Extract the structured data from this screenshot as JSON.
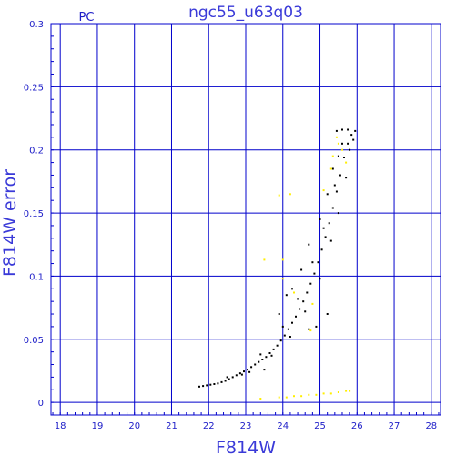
{
  "chart_data": {
    "type": "scatter",
    "title": "ngc55_u63q03",
    "corner_label": "PC",
    "xlabel": "F814W",
    "ylabel": "F814W error",
    "xlim": [
      17.75,
      28.25
    ],
    "ylim": [
      -0.01,
      0.3
    ],
    "x_ticks": [
      18,
      19,
      20,
      21,
      22,
      23,
      24,
      25,
      26,
      27,
      28
    ],
    "y_ticks": [
      0,
      0.05,
      0.1,
      0.15,
      0.2,
      0.25,
      0.3
    ],
    "y_tick_labels": [
      "0",
      "0.05",
      "0.1",
      "0.15",
      "0.2",
      "0.25",
      "0.3"
    ],
    "grid": true,
    "colors": {
      "axis": "#0000cc",
      "grid": "#0000cc",
      "text": "#3a3ad8",
      "main_series": "#000000",
      "secondary_series": "#ffee00"
    },
    "series": [
      {
        "color": "#000000",
        "values": [
          [
            21.75,
            0.0125
          ],
          [
            21.85,
            0.013
          ],
          [
            21.95,
            0.0135
          ],
          [
            22.05,
            0.014
          ],
          [
            22.15,
            0.0145
          ],
          [
            22.25,
            0.015
          ],
          [
            22.35,
            0.016
          ],
          [
            22.45,
            0.017
          ],
          [
            22.55,
            0.0185
          ],
          [
            22.65,
            0.02
          ],
          [
            22.75,
            0.0215
          ],
          [
            22.85,
            0.023
          ],
          [
            22.95,
            0.0245
          ],
          [
            23.05,
            0.026
          ],
          [
            23.15,
            0.028
          ],
          [
            23.25,
            0.03
          ],
          [
            23.35,
            0.032
          ],
          [
            23.45,
            0.034
          ],
          [
            23.55,
            0.036
          ],
          [
            23.65,
            0.039
          ],
          [
            23.75,
            0.042
          ],
          [
            23.85,
            0.045
          ],
          [
            23.95,
            0.049
          ],
          [
            24.05,
            0.053
          ],
          [
            24.15,
            0.058
          ],
          [
            24.25,
            0.063
          ],
          [
            24.35,
            0.068
          ],
          [
            24.45,
            0.074
          ],
          [
            24.55,
            0.08
          ],
          [
            24.65,
            0.087
          ],
          [
            24.75,
            0.094
          ],
          [
            24.85,
            0.102
          ],
          [
            24.95,
            0.111
          ],
          [
            25.05,
            0.121
          ],
          [
            25.15,
            0.131
          ],
          [
            25.25,
            0.142
          ],
          [
            25.35,
            0.154
          ],
          [
            25.45,
            0.167
          ],
          [
            25.55,
            0.18
          ],
          [
            25.65,
            0.194
          ],
          [
            25.75,
            0.205
          ],
          [
            25.85,
            0.212
          ],
          [
            25.95,
            0.215
          ],
          [
            23.1,
            0.024
          ],
          [
            23.4,
            0.038
          ],
          [
            23.7,
            0.037
          ],
          [
            24.0,
            0.06
          ],
          [
            24.2,
            0.052
          ],
          [
            24.4,
            0.082
          ],
          [
            24.6,
            0.072
          ],
          [
            24.8,
            0.111
          ],
          [
            25.0,
            0.098
          ],
          [
            25.1,
            0.138
          ],
          [
            25.3,
            0.128
          ],
          [
            25.4,
            0.172
          ],
          [
            25.5,
            0.15
          ],
          [
            25.6,
            0.205
          ],
          [
            25.7,
            0.178
          ],
          [
            25.8,
            0.2
          ],
          [
            25.9,
            0.208
          ],
          [
            25.45,
            0.215
          ],
          [
            25.6,
            0.216
          ],
          [
            25.75,
            0.216
          ],
          [
            24.25,
            0.09
          ],
          [
            24.5,
            0.105
          ],
          [
            24.7,
            0.125
          ],
          [
            25.0,
            0.145
          ],
          [
            25.2,
            0.165
          ],
          [
            25.35,
            0.185
          ],
          [
            25.5,
            0.195
          ],
          [
            24.9,
            0.06
          ],
          [
            25.2,
            0.07
          ],
          [
            23.9,
            0.07
          ],
          [
            24.1,
            0.085
          ],
          [
            23.5,
            0.026
          ],
          [
            22.9,
            0.022
          ],
          [
            22.5,
            0.02
          ],
          [
            24.7,
            0.058
          ]
        ]
      },
      {
        "color": "#ffee00",
        "values": [
          [
            23.4,
            0.003
          ],
          [
            23.9,
            0.004
          ],
          [
            24.1,
            0.004
          ],
          [
            24.3,
            0.005
          ],
          [
            24.5,
            0.005
          ],
          [
            24.7,
            0.006
          ],
          [
            24.9,
            0.006
          ],
          [
            25.1,
            0.007
          ],
          [
            25.3,
            0.007
          ],
          [
            25.5,
            0.008
          ],
          [
            25.7,
            0.009
          ],
          [
            25.8,
            0.009
          ],
          [
            24.0,
            0.113
          ],
          [
            24.0,
            0.098
          ],
          [
            23.5,
            0.113
          ],
          [
            23.9,
            0.164
          ],
          [
            24.2,
            0.165
          ],
          [
            25.1,
            0.168
          ],
          [
            25.35,
            0.195
          ],
          [
            25.3,
            0.185
          ],
          [
            25.6,
            0.2
          ],
          [
            25.7,
            0.19
          ],
          [
            25.5,
            0.205
          ],
          [
            24.8,
            0.078
          ],
          [
            24.75,
            0.057
          ],
          [
            25.45,
            0.21
          ],
          [
            24.3,
            0.087
          ]
        ]
      }
    ]
  }
}
